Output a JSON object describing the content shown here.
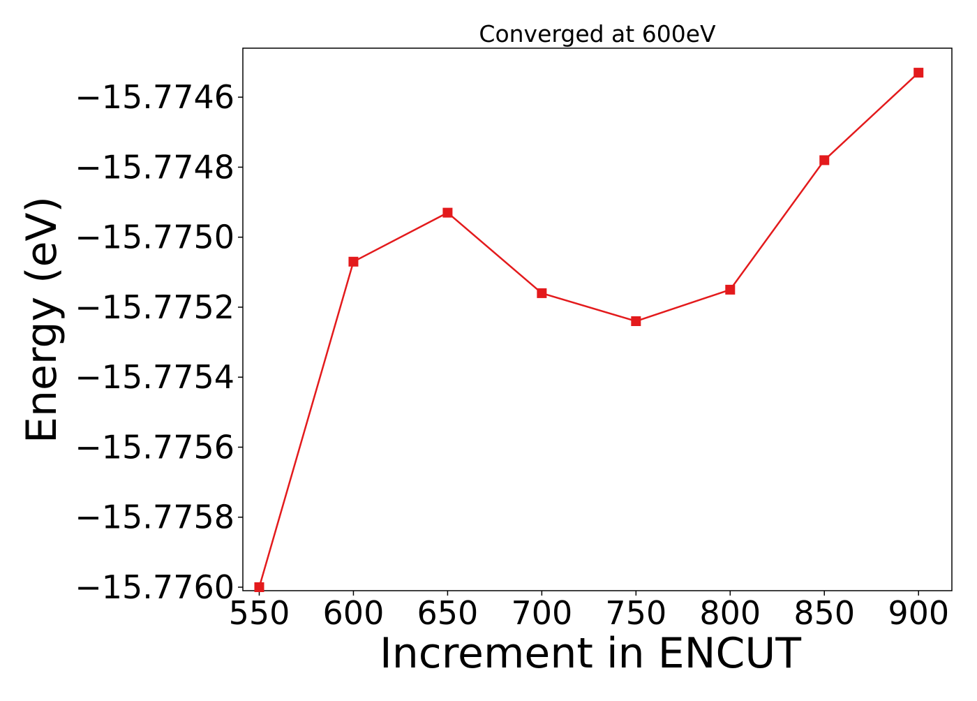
{
  "chart_data": {
    "type": "line",
    "title": "Converged at 600eV",
    "xlabel": "Increment in ENCUT",
    "ylabel": "Energy (eV)",
    "x": [
      550,
      600,
      650,
      700,
      750,
      800,
      850,
      900
    ],
    "series": [
      {
        "values": [
          -15.776,
          -15.77507,
          -15.77493,
          -15.77516,
          -15.77524,
          -15.77515,
          -15.77478,
          -15.77453
        ],
        "color": "#e31a1c",
        "marker": "square"
      }
    ],
    "xticks": [
      "550",
      "600",
      "650",
      "700",
      "750",
      "800",
      "850",
      "900"
    ],
    "yticks": [
      "−15.7760",
      "−15.7758",
      "−15.7756",
      "−15.7754",
      "−15.7752",
      "−15.7750",
      "−15.7748",
      "−15.7746"
    ],
    "ytick_values": [
      -15.776,
      -15.7758,
      -15.7756,
      -15.7754,
      -15.7752,
      -15.775,
      -15.7748,
      -15.7746
    ],
    "xlim": [
      541.3,
      917.7
    ],
    "ylim": [
      -15.77601,
      -15.77446
    ],
    "grid": false,
    "legend": "none"
  }
}
